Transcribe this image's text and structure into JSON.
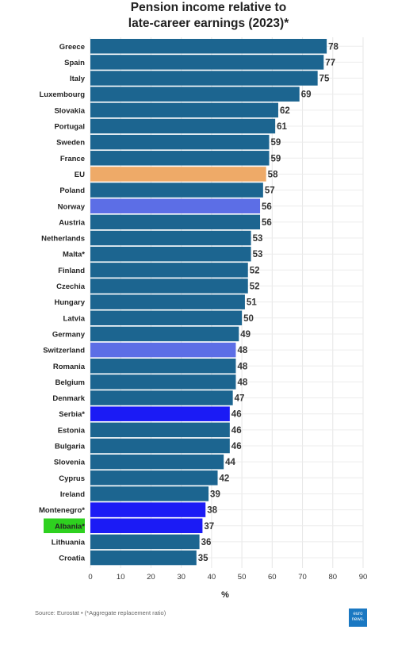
{
  "title_line1": "Pension income relative to",
  "title_line2": "late-career earnings (2023)*",
  "source": "Source: Eurostat • (*Aggregate replacement ratio)",
  "logo_text": "euro news.",
  "colors": {
    "default": "#1c6590",
    "eu": "#eeaa68",
    "norway_switzerland": "#5c6ee6",
    "candidates": "#1b1bf5",
    "albania_highlight": "#2ed11f"
  },
  "chart_data": {
    "type": "bar",
    "orientation": "horizontal",
    "title": "Pension income relative to late-career earnings (2023)*",
    "xlabel": "%",
    "xlim": [
      0,
      90
    ],
    "xticks": [
      0,
      10,
      20,
      30,
      40,
      50,
      60,
      70,
      80,
      90
    ],
    "grid": true,
    "categories": [
      "Greece",
      "Spain",
      "Italy",
      "Luxembourg",
      "Slovakia",
      "Portugal",
      "Sweden",
      "France",
      "EU",
      "Poland",
      "Norway",
      "Austria",
      "Netherlands",
      "Malta*",
      "Finland",
      "Czechia",
      "Hungary",
      "Latvia",
      "Germany",
      "Switzerland",
      "Romania",
      "Belgium",
      "Denmark",
      "Serbia*",
      "Estonia",
      "Bulgaria",
      "Slovenia",
      "Cyprus",
      "Ireland",
      "Montenegro*",
      "Albania*",
      "Lithuania",
      "Croatia"
    ],
    "values": [
      78,
      77,
      75,
      69,
      62,
      61,
      59,
      59,
      58,
      57,
      56,
      56,
      53,
      53,
      52,
      52,
      51,
      50,
      49,
      48,
      48,
      48,
      47,
      46,
      46,
      46,
      44,
      42,
      39,
      38,
      37,
      36,
      35
    ],
    "bar_colors": [
      "#1c6590",
      "#1c6590",
      "#1c6590",
      "#1c6590",
      "#1c6590",
      "#1c6590",
      "#1c6590",
      "#1c6590",
      "#eeaa68",
      "#1c6590",
      "#5c6ee6",
      "#1c6590",
      "#1c6590",
      "#1c6590",
      "#1c6590",
      "#1c6590",
      "#1c6590",
      "#1c6590",
      "#1c6590",
      "#5c6ee6",
      "#1c6590",
      "#1c6590",
      "#1c6590",
      "#1b1bf5",
      "#1c6590",
      "#1c6590",
      "#1c6590",
      "#1c6590",
      "#1c6590",
      "#1b1bf5",
      "#1b1bf5",
      "#1c6590",
      "#1c6590"
    ],
    "highlighted_label": "Albania*"
  }
}
